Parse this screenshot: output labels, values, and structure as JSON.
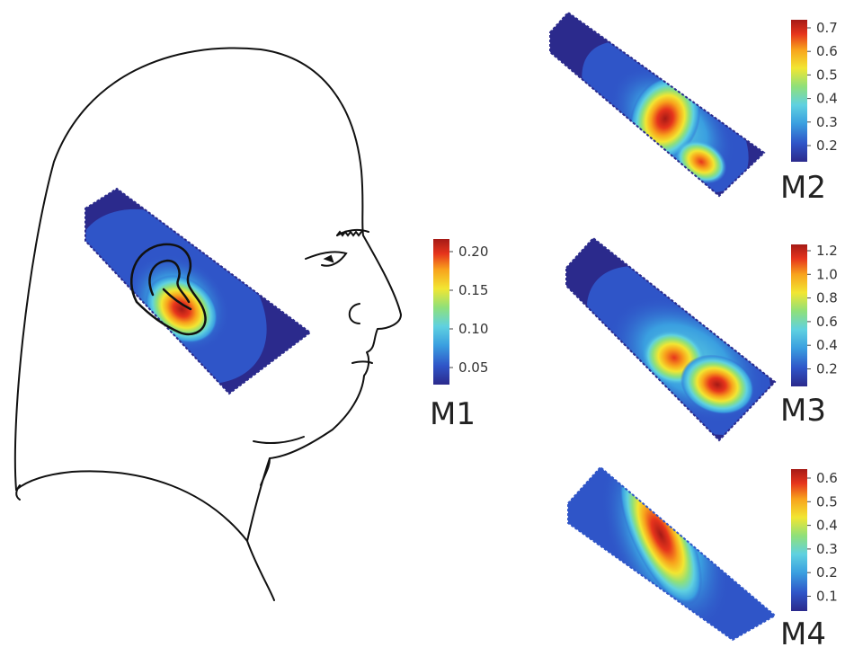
{
  "figure": {
    "colormap": [
      "#2b2a8c",
      "#2f55c8",
      "#3a9fe0",
      "#5fd1e0",
      "#8fe07a",
      "#f2e632",
      "#f8a21c",
      "#e6341c",
      "#a51a16"
    ],
    "panels": [
      {
        "id": "M1",
        "label": "M1",
        "colorbar_ticks": [
          "0.20",
          "0.15",
          "0.10",
          "0.05"
        ],
        "range": [
          0.03,
          0.21
        ],
        "hotspots": [
          {
            "label": "ear",
            "level": 1.0
          }
        ]
      },
      {
        "id": "M2",
        "label": "M2",
        "colorbar_ticks": [
          "0.7",
          "0.6",
          "0.5",
          "0.4",
          "0.3",
          "0.2"
        ],
        "range": [
          0.15,
          0.73
        ],
        "hotspots": [
          {
            "label": "upper",
            "level": 0.95
          },
          {
            "label": "lower",
            "level": 0.75
          }
        ]
      },
      {
        "id": "M3",
        "label": "M3",
        "colorbar_ticks": [
          "1.2",
          "1.0",
          "0.8",
          "0.6",
          "0.4",
          "0.2"
        ],
        "range": [
          0.1,
          1.25
        ],
        "hotspots": [
          {
            "label": "left",
            "level": 0.85
          },
          {
            "label": "right",
            "level": 0.95
          }
        ]
      },
      {
        "id": "M4",
        "label": "M4",
        "colorbar_ticks": [
          "0.6",
          "0.5",
          "0.4",
          "0.3",
          "0.2",
          "0.1"
        ],
        "range": [
          0.05,
          0.63
        ],
        "hotspots": [
          {
            "label": "upper-band",
            "level": 0.95
          }
        ]
      }
    ]
  }
}
